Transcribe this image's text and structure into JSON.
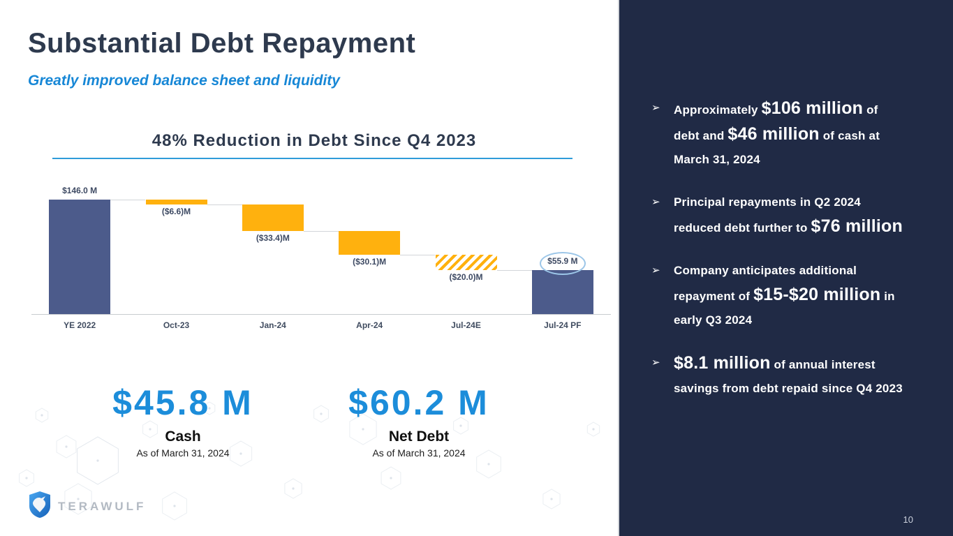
{
  "slide": {
    "title": "Substantial Debt Repayment",
    "subtitle": "Greatly improved balance sheet and liquidity",
    "logo_text": "TERAWULF",
    "page_number": "10"
  },
  "chart_data": {
    "type": "waterfall",
    "title": "48% Reduction in Debt Since Q4 2023",
    "categories": [
      "YE 2022",
      "Oct-23",
      "Jan-24",
      "Apr-24",
      "Jul-24E",
      "Jul-24 PF"
    ],
    "unit": "USD millions",
    "ylim": [
      0,
      160
    ],
    "bars": [
      {
        "category": "YE 2022",
        "label": "$146.0 M",
        "start": 0,
        "end": 146.0,
        "kind": "total",
        "label_pos": "above",
        "hatched": false,
        "circled": false
      },
      {
        "category": "Oct-23",
        "label": "($6.6)M",
        "start": 146.0,
        "end": 139.4,
        "kind": "decrease",
        "label_pos": "below",
        "hatched": false,
        "circled": false
      },
      {
        "category": "Jan-24",
        "label": "($33.4)M",
        "start": 139.4,
        "end": 106.0,
        "kind": "decrease",
        "label_pos": "below",
        "hatched": false,
        "circled": false
      },
      {
        "category": "Apr-24",
        "label": "($30.1)M",
        "start": 106.0,
        "end": 75.9,
        "kind": "decrease",
        "label_pos": "below",
        "hatched": false,
        "circled": false
      },
      {
        "category": "Jul-24E",
        "label": "($20.0)M",
        "start": 75.9,
        "end": 55.9,
        "kind": "decrease",
        "label_pos": "below",
        "hatched": true,
        "circled": false
      },
      {
        "category": "Jul-24 PF",
        "label": "$55.9 M",
        "start": 0,
        "end": 55.9,
        "kind": "total",
        "label_pos": "above",
        "hatched": false,
        "circled": true
      }
    ],
    "colors": {
      "total_bar": "#4C5B8B",
      "decrease_bar": "#FFB10E",
      "connector": "#D2D5D9",
      "highlight_ellipse": "#9CC6E8",
      "title_underline": "#2F9CD9"
    }
  },
  "stats": [
    {
      "value": "$45.8 M",
      "label": "Cash",
      "sublabel": "As of March 31, 2024"
    },
    {
      "value": "$60.2 M",
      "label": "Net Debt",
      "sublabel": "As of March 31, 2024"
    }
  ],
  "sidebar": {
    "marker": "➢",
    "bullets": [
      {
        "segments": [
          {
            "text": "Approximately ",
            "big": false
          },
          {
            "text": "$106 million",
            "big": true
          },
          {
            "text": " of debt and ",
            "big": false
          },
          {
            "text": "$46 million",
            "big": true
          },
          {
            "text": " of cash at March 31, 2024",
            "big": false
          }
        ]
      },
      {
        "segments": [
          {
            "text": "Principal repayments in Q2 2024 reduced debt further to ",
            "big": false
          },
          {
            "text": "$76 million",
            "big": true
          }
        ]
      },
      {
        "segments": [
          {
            "text": "Company anticipates additional repayment of ",
            "big": false
          },
          {
            "text": "$15-$20 million",
            "big": true
          },
          {
            "text": " in early Q3 2024",
            "big": false
          }
        ]
      },
      {
        "segments": [
          {
            "text": "$8.1 million",
            "big": true
          },
          {
            "text": " of annual interest savings from debt repaid since Q4 2023",
            "big": false
          }
        ]
      }
    ]
  }
}
